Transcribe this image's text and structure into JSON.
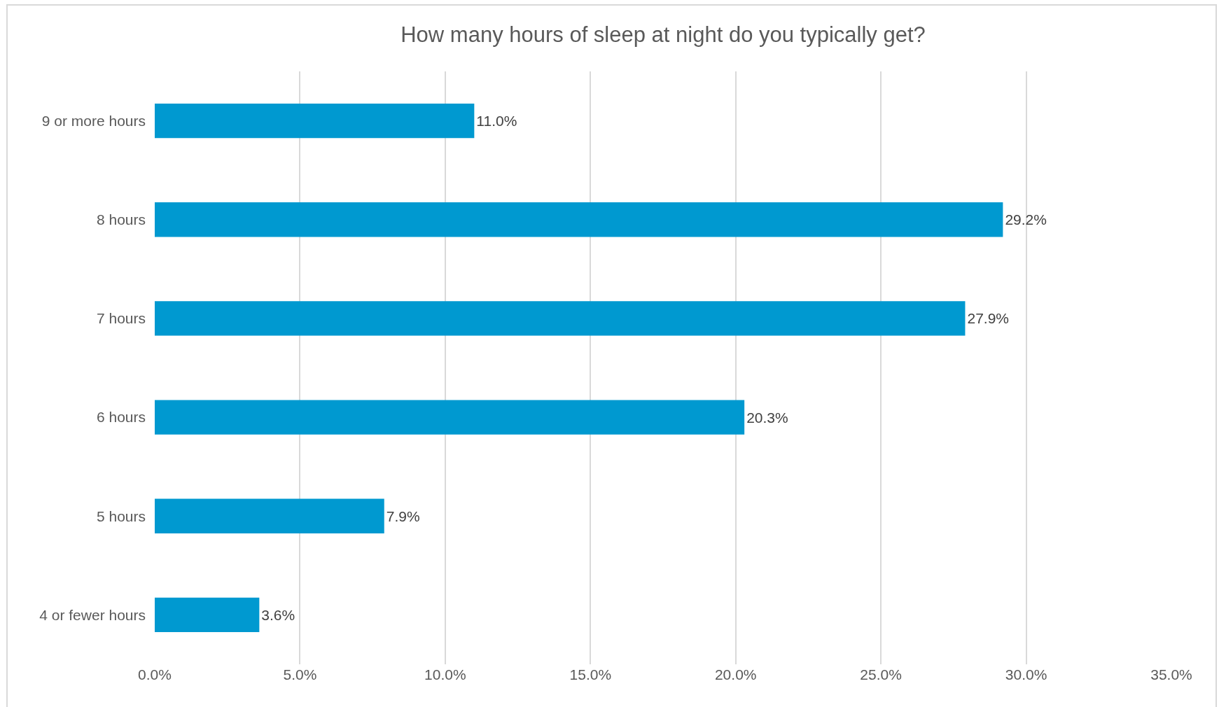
{
  "chart_data": {
    "type": "bar",
    "orientation": "horizontal",
    "title": "How many hours of sleep at night do you typically get?",
    "categories": [
      "9 or more hours",
      "8 hours",
      "7 hours",
      "6 hours",
      "5 hours",
      "4 or fewer hours"
    ],
    "values": [
      11.0,
      29.2,
      27.9,
      20.3,
      7.9,
      3.6
    ],
    "value_labels": [
      "11.0%",
      "29.2%",
      "27.9%",
      "20.3%",
      "7.9%",
      "3.6%"
    ],
    "color": "#0099d0",
    "xlim": [
      0,
      35
    ],
    "xticks": [
      {
        "value": 0,
        "label": "0.0%"
      },
      {
        "value": 5,
        "label": "5.0%"
      },
      {
        "value": 10,
        "label": "10.0%"
      },
      {
        "value": 15,
        "label": "15.0%"
      },
      {
        "value": 20,
        "label": "20.0%"
      },
      {
        "value": 25,
        "label": "25.0%"
      },
      {
        "value": 30,
        "label": "30.0%"
      },
      {
        "value": 35,
        "label": "35.0%"
      }
    ],
    "grid": "x"
  }
}
